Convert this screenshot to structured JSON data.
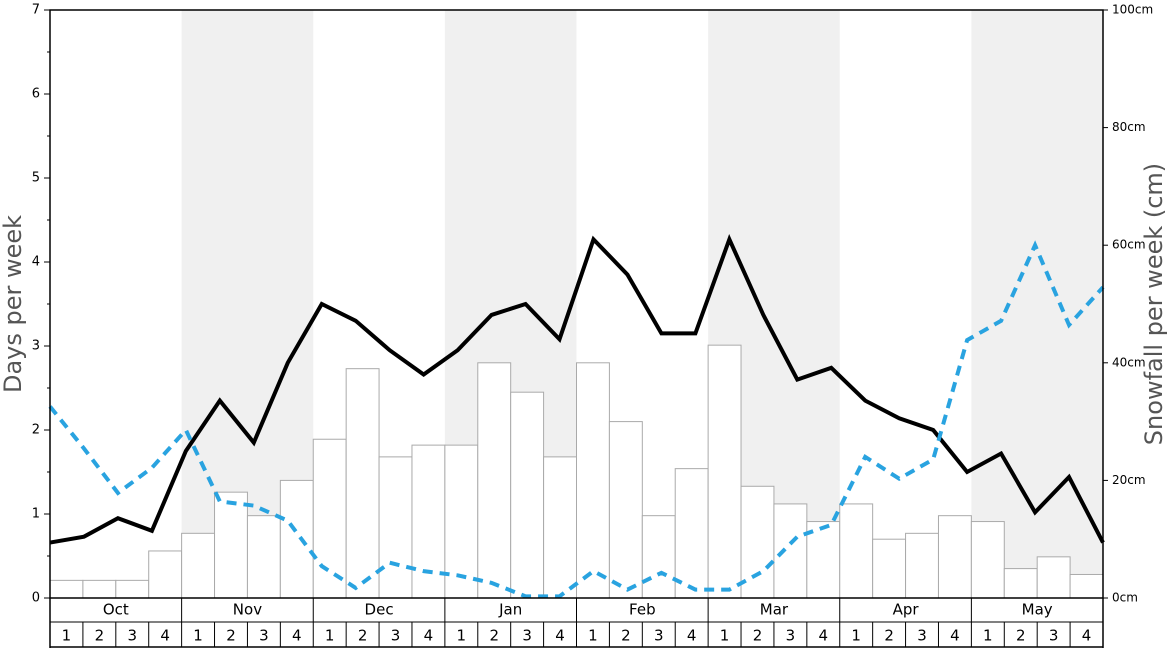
{
  "chart_data": {
    "type": "bar_line",
    "ylabel": "Days per week",
    "y2label": "Snowfall per week (cm)",
    "months": [
      "Oct",
      "Nov",
      "Dec",
      "Jan",
      "Feb",
      "Mar",
      "Apr",
      "May"
    ],
    "categories": [
      "1",
      "2",
      "3",
      "4",
      "1",
      "2",
      "3",
      "4",
      "1",
      "2",
      "3",
      "4",
      "1",
      "2",
      "3",
      "4",
      "1",
      "2",
      "3",
      "4",
      "1",
      "2",
      "3",
      "4",
      "1",
      "2",
      "3",
      "4",
      "1",
      "2",
      "3",
      "4"
    ],
    "ylim": [
      0,
      7
    ],
    "yticks": [
      0,
      1,
      2,
      3,
      4,
      5,
      6,
      7
    ],
    "y2lim": [
      0,
      100
    ],
    "y2ticks": [
      {
        "value": 0,
        "label": "0cm"
      },
      {
        "value": 20,
        "label": "20cm"
      },
      {
        "value": 40,
        "label": "40cm"
      },
      {
        "value": 60,
        "label": "60cm"
      },
      {
        "value": 80,
        "label": "80cm"
      },
      {
        "value": 100,
        "label": "100cm"
      }
    ],
    "series": [
      {
        "kind": "bar",
        "axis": "y2",
        "color": "#ffffff",
        "values": [
          3,
          3,
          3,
          8,
          11,
          18,
          14,
          20,
          27,
          39,
          24,
          26,
          26,
          40,
          35,
          24,
          40,
          30,
          14,
          22,
          43,
          19,
          16,
          13,
          16,
          10,
          11,
          14,
          13,
          5,
          7,
          4
        ]
      },
      {
        "kind": "line",
        "axis": "y",
        "color": "#000000",
        "values": [
          0.66,
          0.73,
          0.95,
          0.8,
          1.75,
          2.35,
          1.85,
          2.8,
          3.5,
          3.3,
          2.95,
          2.66,
          2.95,
          3.37,
          3.5,
          3.08,
          4.27,
          3.85,
          3.15,
          3.15,
          4.27,
          3.37,
          2.6,
          2.74,
          2.35,
          2.14,
          2.0,
          1.5,
          1.72,
          1.02,
          1.44,
          0.66
        ]
      },
      {
        "kind": "dashed",
        "axis": "y",
        "color": "#29a3e0",
        "values": [
          2.28,
          1.78,
          1.25,
          1.55,
          2.0,
          1.15,
          1.1,
          0.92,
          0.38,
          0.12,
          0.42,
          0.32,
          0.27,
          0.18,
          0.02,
          0.02,
          0.32,
          0.1,
          0.3,
          0.1,
          0.1,
          0.32,
          0.73,
          0.87,
          1.68,
          1.42,
          1.65,
          3.07,
          3.3,
          4.2,
          3.25,
          3.7
        ]
      }
    ]
  }
}
